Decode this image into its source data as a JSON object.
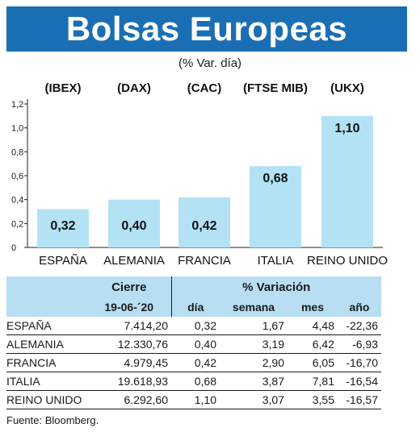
{
  "title": "Bolsas Europeas",
  "subtitle": "(% Var. día)",
  "chart_data": {
    "type": "bar",
    "categories": [
      "ESPAÑA",
      "ALEMANIA",
      "FRANCIA",
      "ITALIA",
      "REINO UNIDO"
    ],
    "index_labels": [
      "(IBEX)",
      "(DAX)",
      "(CAC)",
      "(FTSE MIB)",
      "(UKX)"
    ],
    "values": [
      0.32,
      0.4,
      0.42,
      0.68,
      1.1
    ],
    "value_labels": [
      "0,32",
      "0,40",
      "0,42",
      "0,68",
      "1,10"
    ],
    "y_ticks": [
      "0",
      "0,2",
      "0,4",
      "0,6",
      "0,8",
      "1,0",
      "1,2"
    ],
    "ylim": [
      0,
      1.2
    ],
    "grid": false,
    "bar_color": "#b3e2f5"
  },
  "table": {
    "header_cierre": "Cierre",
    "header_date": "19-06-´20",
    "header_variacion": "% Variación",
    "header_dia": "día",
    "header_semana": "semana",
    "header_mes": "mes",
    "header_anio": "año",
    "rows": [
      {
        "name": "ESPAÑA",
        "cierre": "7.414,20",
        "dia": "0,32",
        "semana": "1,67",
        "mes": "4,48",
        "anio": "-22,36"
      },
      {
        "name": "ALEMANIA",
        "cierre": "12.330,76",
        "dia": "0,40",
        "semana": "3,19",
        "mes": "6,42",
        "anio": "-6,93"
      },
      {
        "name": "FRANCIA",
        "cierre": "4.979,45",
        "dia": "0,42",
        "semana": "2,90",
        "mes": "6,05",
        "anio": "-16,70"
      },
      {
        "name": "ITALIA",
        "cierre": "19.618,93",
        "dia": "0,68",
        "semana": "3,87",
        "mes": "7,81",
        "anio": "-16,54"
      },
      {
        "name": "REINO UNIDO",
        "cierre": "6.292,60",
        "dia": "1,10",
        "semana": "3,07",
        "mes": "3,55",
        "anio": "-16,57"
      }
    ]
  },
  "source": "Fuente: Bloomberg.",
  "colors": {
    "title_bg": "#1a6fb4",
    "header_bg": "#b8def3"
  }
}
